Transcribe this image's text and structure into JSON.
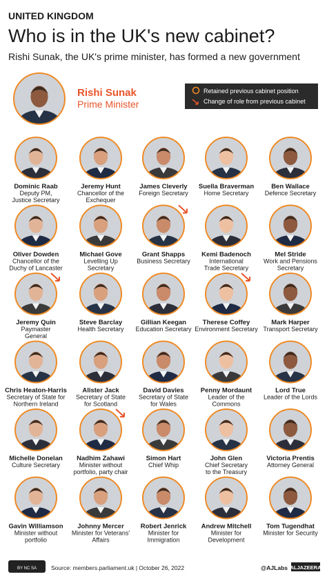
{
  "header": {
    "kicker": "UNITED KINGDOM",
    "title": "Who is in the UK's new cabinet?",
    "subtitle": "Rishi Sunak, the UK's prime minister, has formed a new government"
  },
  "leader": {
    "name": "Rishi Sunak",
    "role": "Prime Minister"
  },
  "legend": {
    "retained": "Retained previous cabinet position",
    "changed": "Change of role from previous cabinet"
  },
  "members": [
    {
      "name": "Dominic Raab",
      "role": [
        "Deputy PM,",
        "Justice Secretary"
      ],
      "changed": false
    },
    {
      "name": "Jeremy Hunt",
      "role": [
        "Chancellor of the",
        "Exchequer"
      ],
      "changed": false
    },
    {
      "name": "James Cleverly",
      "role": [
        "Foreign Secretary"
      ],
      "changed": false
    },
    {
      "name": "Suella Braverman",
      "role": [
        "Home Secretary"
      ],
      "changed": false
    },
    {
      "name": "Ben Wallace",
      "role": [
        "Defence Secretary"
      ],
      "changed": false
    },
    {
      "name": "Oliver Dowden",
      "role": [
        "Chancellor of the",
        "Duchy of Lancaster"
      ],
      "changed": false
    },
    {
      "name": "Michael Gove",
      "role": [
        "Levelling Up",
        "Secretary"
      ],
      "changed": false
    },
    {
      "name": "Grant Shapps",
      "role": [
        "Business Secretary"
      ],
      "changed": true
    },
    {
      "name": "Kemi Badenoch",
      "role": [
        "International",
        "Trade Secretary"
      ],
      "changed": false
    },
    {
      "name": "Mel Stride",
      "role": [
        "Work and Pensions",
        "Secretary"
      ],
      "changed": false
    },
    {
      "name": "Jeremy Quin",
      "role": [
        "Paymaster",
        "General"
      ],
      "changed": true
    },
    {
      "name": "Steve Barclay",
      "role": [
        "Health Secretary"
      ],
      "changed": false
    },
    {
      "name": "Gillian Keegan",
      "role": [
        "Education Secretary"
      ],
      "changed": false
    },
    {
      "name": "Therese Coffey",
      "role": [
        "Environment Secretary"
      ],
      "changed": true
    },
    {
      "name": "Mark Harper",
      "role": [
        "Transport Secretary"
      ],
      "changed": false
    },
    {
      "name": "Chris Heaton-Harris",
      "role": [
        "Secretary of State for",
        "Northern Ireland"
      ],
      "changed": false
    },
    {
      "name": "Alister Jack",
      "role": [
        "Secretary of State",
        "for Scotland"
      ],
      "changed": false
    },
    {
      "name": "David Davies",
      "role": [
        "Secretary of State",
        "for Wales"
      ],
      "changed": false
    },
    {
      "name": "Penny Mordaunt",
      "role": [
        "Leader of the",
        "Commons"
      ],
      "changed": false
    },
    {
      "name": "Lord True",
      "role": [
        "Leader of the Lords"
      ],
      "changed": false
    },
    {
      "name": "Michelle Donelan",
      "role": [
        "Culture Secretary"
      ],
      "changed": false
    },
    {
      "name": "Nadhim Zahawi",
      "role": [
        "Minister without",
        "portfolio, party chair"
      ],
      "changed": true
    },
    {
      "name": "Simon Hart",
      "role": [
        "Chief Whip"
      ],
      "changed": false
    },
    {
      "name": "John Glen",
      "role": [
        "Chief Secretary",
        "to the Treasury"
      ],
      "changed": false
    },
    {
      "name": "Victoria Prentis",
      "role": [
        "Attorney General"
      ],
      "changed": false
    },
    {
      "name": "Gavin Williamson",
      "role": [
        "Minister without",
        "portfolio"
      ],
      "changed": false
    },
    {
      "name": "Johnny Mercer",
      "role": [
        "Minister for Veterans'",
        "Affairs"
      ],
      "changed": false
    },
    {
      "name": "Robert Jenrick",
      "role": [
        "Minister for",
        "Immigration"
      ],
      "changed": false
    },
    {
      "name": "Andrew Mitchell",
      "role": [
        "Minister for",
        "Development"
      ],
      "changed": false
    },
    {
      "name": "Tom Tugendhat",
      "role": [
        "Minister for Security"
      ],
      "changed": false
    }
  ],
  "footer": {
    "license": "BY NC SA",
    "source": "Source: members.parliament.uk | October 26, 2022",
    "handle": "@AJLabs",
    "brand": "ALJAZEERA"
  }
}
